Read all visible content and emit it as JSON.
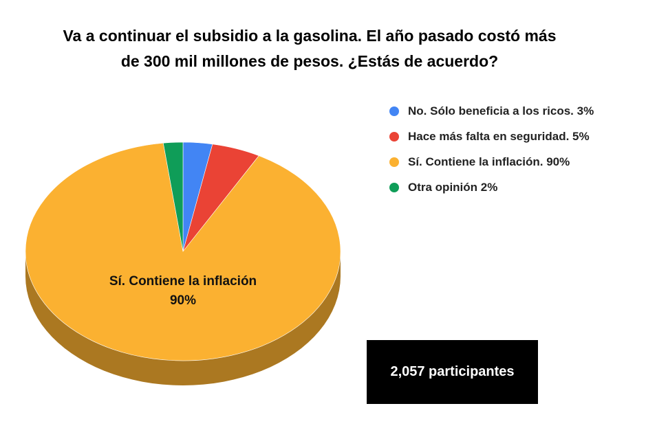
{
  "title": {
    "line1": "Va a continuar el subsidio a la gasolina. El año pasado costó más",
    "line2": "de 300 mil millones de pesos. ¿Estás de acuerdo?"
  },
  "chart_data": {
    "type": "pie",
    "title": "Va a continuar el subsidio a la gasolina. El año pasado costó más de 300 mil millones de pesos. ¿Estás de acuerdo?",
    "three_d": true,
    "legend_position": "right",
    "slices": [
      {
        "label": "No. Sólo beneficia a los ricos.",
        "value": 3,
        "legend": "No. Sólo beneficia a los ricos. 3%",
        "color": "#4285f4"
      },
      {
        "label": "Hace más falta en seguridad.",
        "value": 5,
        "legend": "Hace más falta en seguridad. 5%",
        "color": "#ea4335"
      },
      {
        "label": "Sí. Contiene la inflación.",
        "value": 90,
        "legend": "Sí. Contiene la inflación. 90%",
        "color": "#fbb131"
      },
      {
        "label": "Otra opinión",
        "value": 2,
        "legend": "Otra opinión 2%",
        "color": "#0f9d58"
      }
    ],
    "slice_label": {
      "line1": "Sí. Contiene la inflación",
      "line2": "90%"
    }
  },
  "participants": {
    "label": "2,057 participantes",
    "background": "#000000"
  }
}
